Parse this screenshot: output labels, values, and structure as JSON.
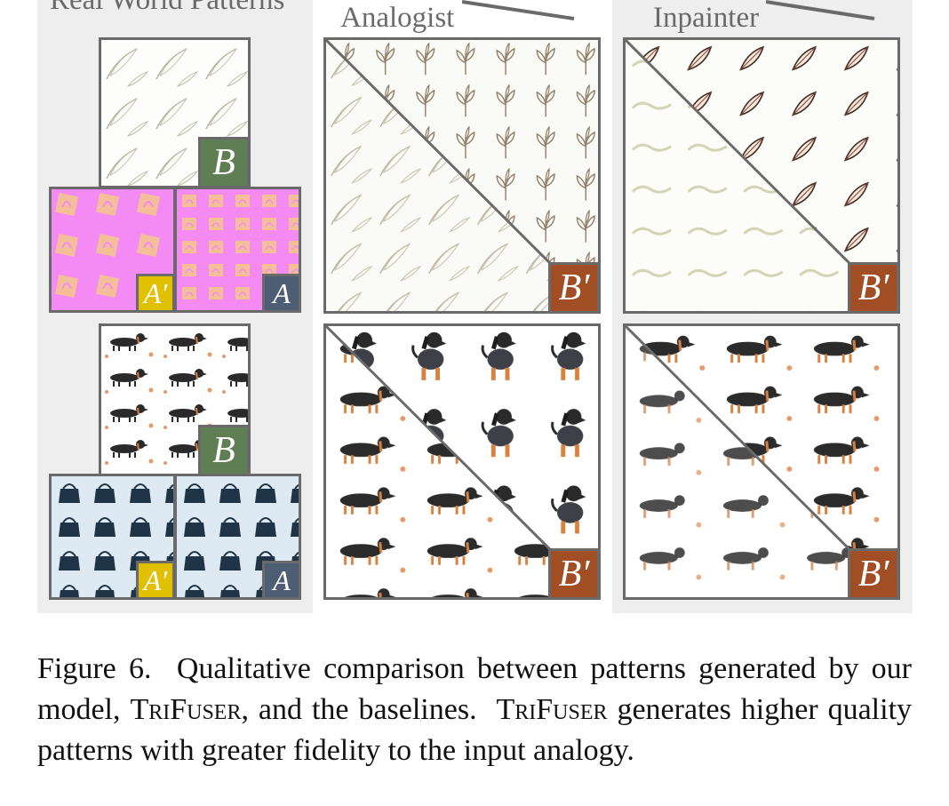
{
  "figure": {
    "headings": {
      "left": "Real World Patterns",
      "middle": "Analogist",
      "right": "Inpainter"
    },
    "badges": {
      "b": "B",
      "b_prime": "B′",
      "a": "A",
      "a_prime": "A′"
    },
    "caption": {
      "label": "Figure 6.",
      "text_1": "Qualitative comparison between patterns generated by our model,",
      "model_name": "TriFuser",
      "text_2": ", and the baselines.",
      "text_3": "generates higher quality patterns with greater fidelity to the input analogy."
    }
  },
  "colors": {
    "panel_background": "#eeeeee",
    "border": "#6a6a6a",
    "badge_b": "#5e7f53",
    "badge_b_prime": "#a14e25",
    "badge_a_prime": "#e0c000",
    "badge_a": "#4d5e74",
    "magenta_pattern": "#f48af4",
    "light_blue_pattern": "#dde9f3"
  }
}
